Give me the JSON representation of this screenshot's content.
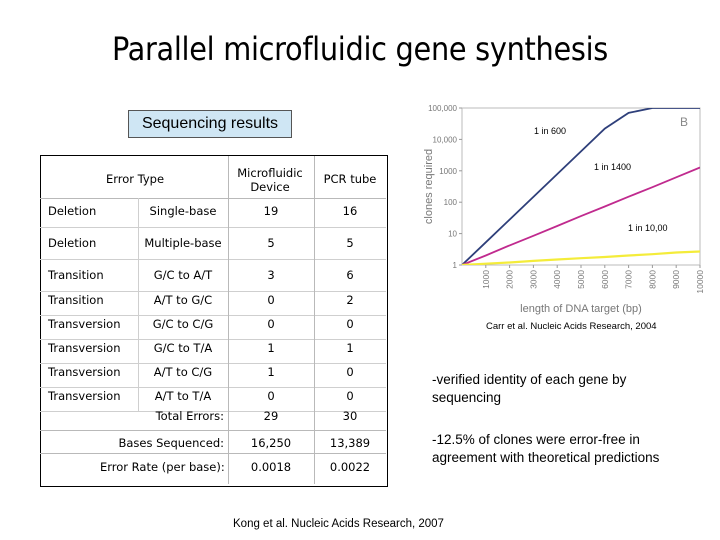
{
  "slide": {
    "title": "Parallel microfluidic gene synthesis",
    "section_label": "Sequencing results",
    "citation_bottom": "Kong et al. Nucleic Acids Research, 2007",
    "citation_chart": "Carr et al. Nucleic Acids Research, 2004",
    "notes": [
      "-verified identity of each gene by sequencing",
      "-12.5% of clones were error-free in agreement with theoretical predictions"
    ]
  },
  "table": {
    "headers": {
      "error_type": "Error Type",
      "microfluidic": "Microfluidic Device",
      "pcr": "PCR tube"
    },
    "rows": [
      {
        "type": "Deletion",
        "sub": "Single-base",
        "micro": "19",
        "pcr": "16"
      },
      {
        "type": "Deletion",
        "sub": "Multiple-base",
        "micro": "5",
        "pcr": "5"
      },
      {
        "type": "Transition",
        "sub": "G/C to A/T",
        "micro": "3",
        "pcr": "6"
      },
      {
        "type": "Transition",
        "sub": "A/T to G/C",
        "micro": "0",
        "pcr": "2"
      },
      {
        "type": "Transversion",
        "sub": "G/C to C/G",
        "micro": "0",
        "pcr": "0"
      },
      {
        "type": "Transversion",
        "sub": "G/C to T/A",
        "micro": "1",
        "pcr": "1"
      },
      {
        "type": "Transversion",
        "sub": "A/T to C/G",
        "micro": "1",
        "pcr": "0"
      },
      {
        "type": "Transversion",
        "sub": "A/T to T/A",
        "micro": "0",
        "pcr": "0"
      }
    ],
    "summary": [
      {
        "label": "Total Errors:",
        "micro": "29",
        "pcr": "30"
      },
      {
        "label": "Bases Sequenced:",
        "micro": "16,250",
        "pcr": "13,389"
      },
      {
        "label": "Error Rate (per base):",
        "micro": "0.0018",
        "pcr": "0.0022"
      }
    ]
  },
  "chart_data": {
    "type": "line",
    "panel_label": "B",
    "xlabel": "length of DNA target (bp)",
    "ylabel": "clones required",
    "x_ticks": [
      "1000",
      "2000",
      "3000",
      "4000",
      "5000",
      "6000",
      "7000",
      "8000",
      "9000",
      "10000"
    ],
    "y_ticks": [
      "1",
      "10",
      "100",
      "1000",
      "10,000",
      "100,000"
    ],
    "xlim": [
      0,
      10000
    ],
    "ylim": [
      1,
      100000
    ],
    "y_scale": "log",
    "series": [
      {
        "name": "1 in 600",
        "color": "#2e3f7a",
        "x": [
          0,
          1000,
          2000,
          3000,
          4000,
          5000,
          6000,
          7000,
          8000,
          9000,
          10000
        ],
        "y": [
          1,
          5.3,
          28,
          148,
          785,
          4160,
          22000,
          70000,
          100000,
          100000,
          100000
        ]
      },
      {
        "name": "1 in 1400",
        "color": "#c02a8e",
        "x": [
          0,
          1000,
          2000,
          3000,
          4000,
          5000,
          6000,
          7000,
          8000,
          9000,
          10000
        ],
        "y": [
          1,
          2.0,
          4.2,
          8.5,
          17.5,
          36,
          73,
          150,
          300,
          620,
          1270
        ]
      },
      {
        "name": "1 in 10,00",
        "color": "#f4ec3a",
        "x": [
          0,
          1000,
          2000,
          3000,
          4000,
          5000,
          6000,
          7000,
          8000,
          9000,
          10000
        ],
        "y": [
          1,
          1.1,
          1.2,
          1.35,
          1.5,
          1.65,
          1.8,
          2.0,
          2.2,
          2.5,
          2.7
        ]
      }
    ]
  }
}
